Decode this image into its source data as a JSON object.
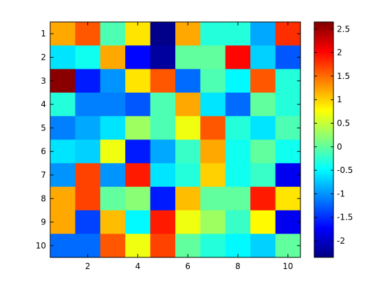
{
  "chart_data": {
    "type": "heatmap",
    "title": "",
    "xlabel": "",
    "ylabel": "",
    "x": [
      1,
      2,
      3,
      4,
      5,
      6,
      7,
      8,
      9,
      10
    ],
    "y": [
      1,
      2,
      3,
      4,
      5,
      6,
      7,
      8,
      9,
      10
    ],
    "xticks": [
      2,
      4,
      6,
      8,
      10
    ],
    "yticks": [
      1,
      2,
      3,
      4,
      5,
      6,
      7,
      8,
      9,
      10
    ],
    "xlim": [
      0.5,
      10.5
    ],
    "ylim": [
      0.5,
      10.5
    ],
    "y_direction": "top-to-bottom",
    "grid": false,
    "colormap": "jet",
    "clim": [
      -2.35,
      2.65
    ],
    "colorbar": {
      "placement": "right",
      "ticks": [
        2.5,
        2,
        1.5,
        1,
        0.5,
        0,
        -0.5,
        -1,
        -1.5,
        -2
      ],
      "ticklabels": [
        "2.5",
        "2",
        "1.5",
        "1",
        "0.5",
        "0",
        "-0.5",
        "-1",
        "-1.5",
        "-2"
      ]
    },
    "values": [
      [
        1.2,
        1.6,
        -0.1,
        0.9,
        -2.3,
        1.2,
        -0.3,
        -0.3,
        -0.9,
        1.8
      ],
      [
        -0.6,
        -0.4,
        1.2,
        -1.7,
        -2.2,
        0.0,
        0.0,
        2.0,
        -0.7,
        -1.3
      ],
      [
        2.6,
        -1.6,
        -1.0,
        0.9,
        1.6,
        -1.2,
        -0.1,
        -0.5,
        1.6,
        -0.3
      ],
      [
        -0.3,
        -1.1,
        -1.1,
        -1.3,
        -0.1,
        1.2,
        -0.6,
        -1.2,
        0.0,
        -0.3
      ],
      [
        -1.1,
        -0.9,
        -0.6,
        0.3,
        -0.1,
        0.7,
        1.6,
        -0.3,
        -0.6,
        -0.1
      ],
      [
        -0.6,
        -0.7,
        0.7,
        -1.6,
        -0.9,
        -0.2,
        1.2,
        -0.4,
        0.0,
        -0.4
      ],
      [
        -1.0,
        1.7,
        -1.0,
        1.9,
        -0.6,
        -0.3,
        1.0,
        -0.4,
        -0.2,
        -1.8
      ],
      [
        1.2,
        1.7,
        0.0,
        0.2,
        -1.6,
        1.1,
        0.0,
        0.0,
        1.9,
        0.9
      ],
      [
        1.2,
        -1.4,
        1.1,
        -0.5,
        1.9,
        0.7,
        0.3,
        -0.2,
        0.8,
        -1.8
      ],
      [
        -1.2,
        -1.2,
        1.6,
        0.7,
        1.7,
        0.0,
        -0.3,
        -0.5,
        -0.7,
        0.0
      ]
    ]
  }
}
